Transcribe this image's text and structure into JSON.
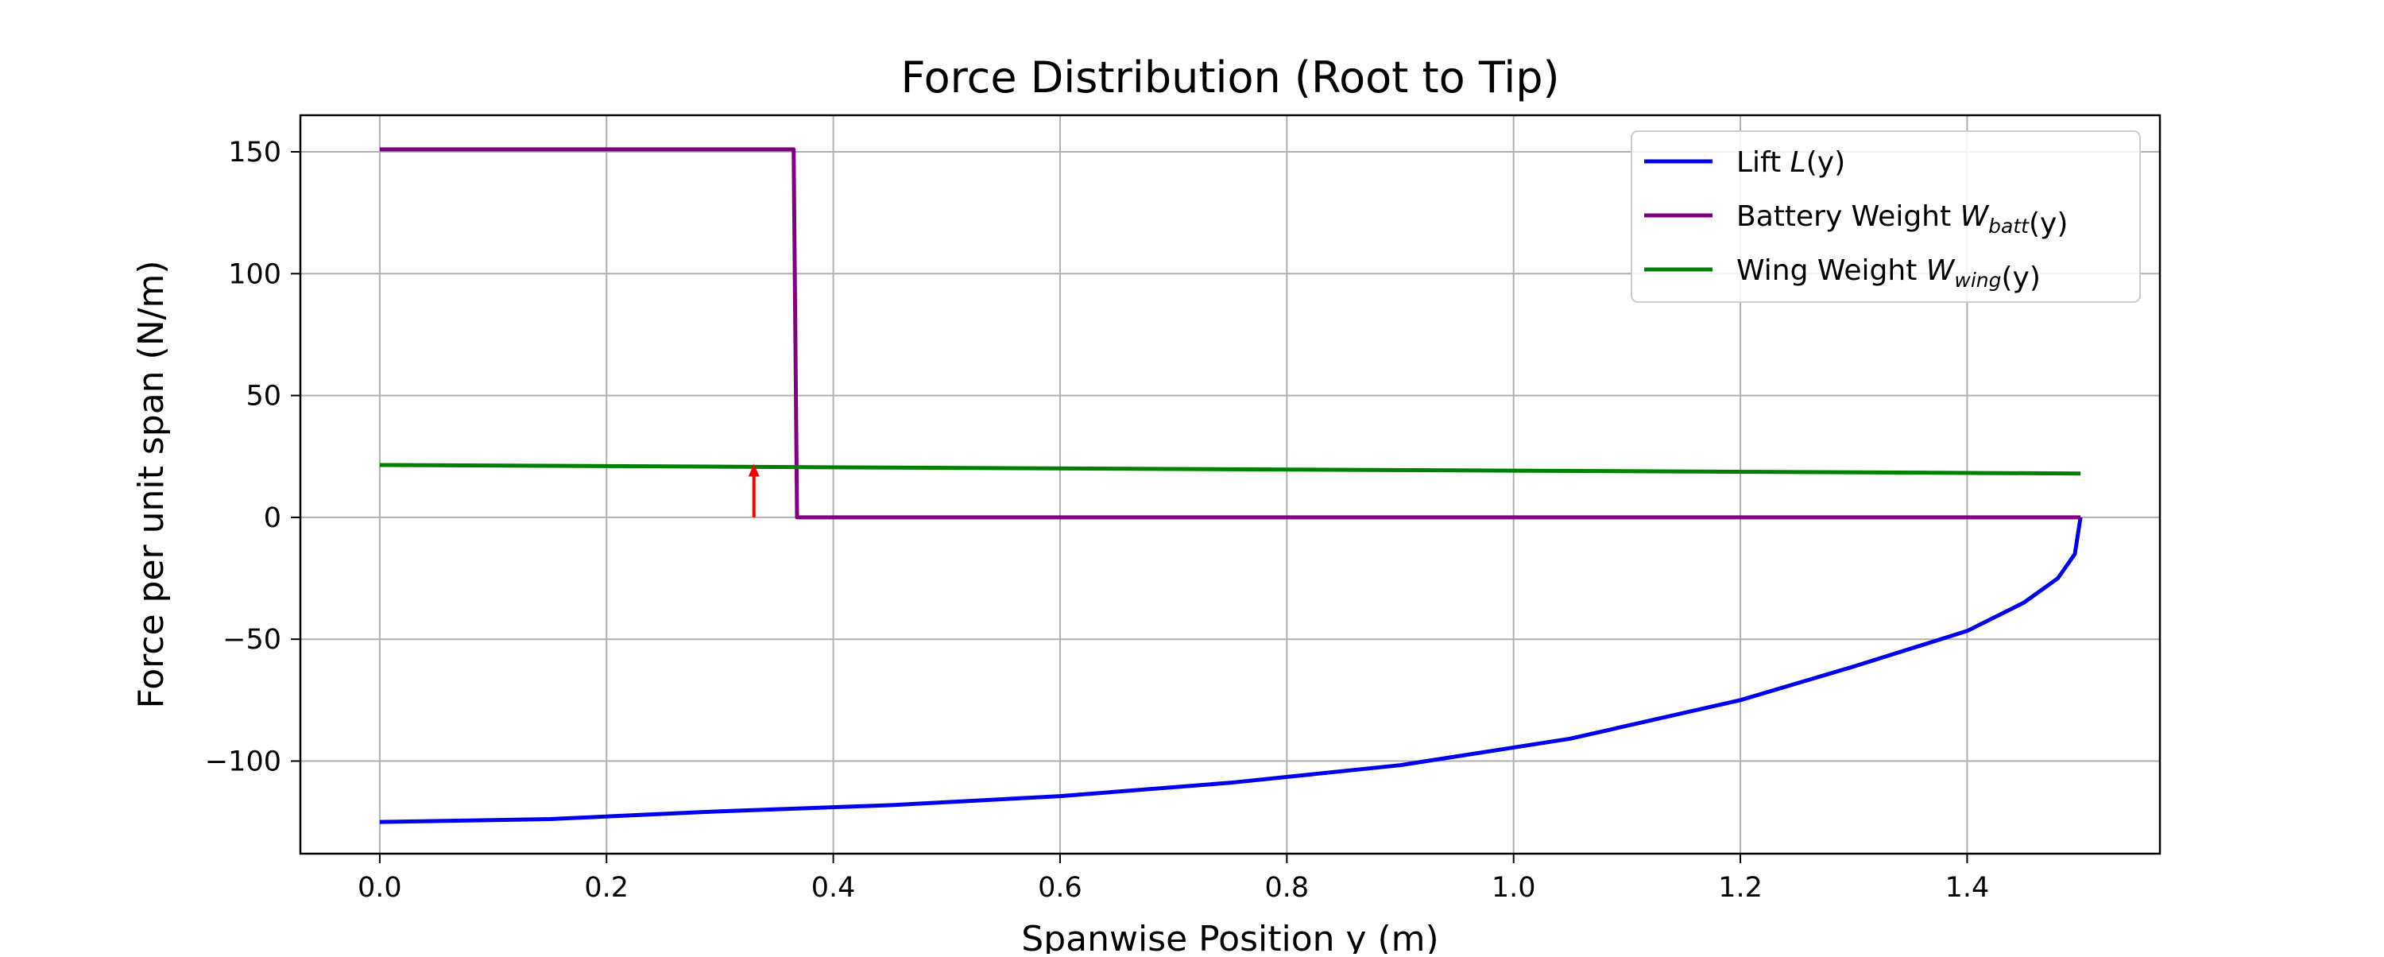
{
  "chart_data": {
    "type": "line",
    "title": "Force Distribution (Root to Tip)",
    "xlabel": "Spanwise Position y (m)",
    "ylabel": "Force per unit span (N/m)",
    "xlim": [
      -0.07,
      1.57
    ],
    "ylim": [
      -138,
      165
    ],
    "x_ticks": [
      0.0,
      0.2,
      0.4,
      0.6,
      0.8,
      1.0,
      1.2,
      1.4
    ],
    "x_tick_labels": [
      "0.0",
      "0.2",
      "0.4",
      "0.6",
      "0.8",
      "1.0",
      "1.2",
      "1.4"
    ],
    "y_ticks": [
      150,
      100,
      50,
      0,
      -50,
      -100
    ],
    "y_tick_labels": [
      "150",
      "100",
      "50",
      "0",
      "−50",
      "−100"
    ],
    "grid": true,
    "legend_position": "top-right",
    "series": [
      {
        "name": "Lift L(y)",
        "legend_parts": {
          "prefix": "Lift ",
          "var": "L",
          "sub": "",
          "suffix": "(y)"
        },
        "color": "#0000ee",
        "x": [
          0.0,
          0.15,
          0.3,
          0.45,
          0.6,
          0.75,
          0.9,
          1.05,
          1.2,
          1.3,
          1.4,
          1.45,
          1.48,
          1.495,
          1.5
        ],
        "y": [
          -125,
          -123.8,
          -120.6,
          -118.1,
          -114.4,
          -108.9,
          -101.7,
          -90.8,
          -75.0,
          -61.2,
          -46.6,
          -35.0,
          -25.0,
          -15.0,
          0
        ]
      },
      {
        "name": "Battery Weight W_batt(y)",
        "legend_parts": {
          "prefix": "Battery Weight ",
          "var": "W",
          "sub": "batt",
          "suffix": "(y)"
        },
        "color": "#800080",
        "x": [
          0.0,
          0.365,
          0.368,
          1.5
        ],
        "y": [
          151,
          151,
          0,
          0
        ]
      },
      {
        "name": "Wing Weight W_wing(y)",
        "legend_parts": {
          "prefix": "Wing Weight ",
          "var": "W",
          "sub": "wing",
          "suffix": "(y)"
        },
        "color": "#008000",
        "x": [
          0.0,
          1.5
        ],
        "y": [
          21.5,
          18
        ]
      }
    ],
    "annotations": [
      {
        "type": "arrow",
        "color": "#ff0000",
        "x": 0.33,
        "y_from": 0,
        "y_to": 22
      }
    ]
  }
}
